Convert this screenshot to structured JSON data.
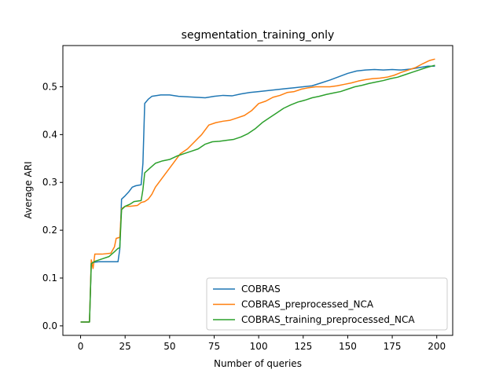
{
  "chart_data": {
    "type": "line",
    "title": "segmentation_training_only",
    "xlabel": "Number of queries",
    "ylabel": "Average ARI",
    "xlim": [
      -9.95,
      208.95
    ],
    "ylim": [
      -0.0199,
      0.5862
    ],
    "xticks": [
      0,
      25,
      50,
      75,
      100,
      125,
      150,
      175,
      200
    ],
    "yticks": [
      0.0,
      0.1,
      0.2,
      0.3,
      0.4,
      0.5
    ],
    "ytick_labels": [
      "0.0",
      "0.1",
      "0.2",
      "0.3",
      "0.4",
      "0.5"
    ],
    "grid": false,
    "legend_position": "lower-right",
    "series": [
      {
        "name": "COBRAS",
        "color": "#1f77b4",
        "points": [
          [
            0,
            0.008
          ],
          [
            5,
            0.008
          ],
          [
            6,
            0.132
          ],
          [
            8,
            0.133
          ],
          [
            10,
            0.134
          ],
          [
            21,
            0.134
          ],
          [
            22,
            0.16
          ],
          [
            23,
            0.265
          ],
          [
            25,
            0.272
          ],
          [
            27,
            0.28
          ],
          [
            29,
            0.29
          ],
          [
            31,
            0.293
          ],
          [
            34,
            0.295
          ],
          [
            35,
            0.34
          ],
          [
            36,
            0.465
          ],
          [
            38,
            0.474
          ],
          [
            40,
            0.48
          ],
          [
            45,
            0.483
          ],
          [
            50,
            0.483
          ],
          [
            55,
            0.48
          ],
          [
            60,
            0.479
          ],
          [
            65,
            0.478
          ],
          [
            70,
            0.477
          ],
          [
            75,
            0.48
          ],
          [
            80,
            0.482
          ],
          [
            85,
            0.481
          ],
          [
            90,
            0.485
          ],
          [
            95,
            0.488
          ],
          [
            100,
            0.49
          ],
          [
            105,
            0.492
          ],
          [
            110,
            0.494
          ],
          [
            115,
            0.496
          ],
          [
            120,
            0.498
          ],
          [
            125,
            0.5
          ],
          [
            130,
            0.502
          ],
          [
            135,
            0.508
          ],
          [
            140,
            0.514
          ],
          [
            145,
            0.521
          ],
          [
            150,
            0.528
          ],
          [
            155,
            0.533
          ],
          [
            160,
            0.535
          ],
          [
            165,
            0.536
          ],
          [
            170,
            0.535
          ],
          [
            175,
            0.536
          ],
          [
            180,
            0.535
          ],
          [
            185,
            0.537
          ],
          [
            190,
            0.54
          ],
          [
            195,
            0.543
          ],
          [
            199,
            0.543
          ]
        ]
      },
      {
        "name": "COBRAS_preprocessed_NCA",
        "color": "#ff7f0e",
        "points": [
          [
            0,
            0.008
          ],
          [
            5,
            0.008
          ],
          [
            6,
            0.138
          ],
          [
            7,
            0.12
          ],
          [
            8,
            0.15
          ],
          [
            12,
            0.15
          ],
          [
            17,
            0.152
          ],
          [
            19,
            0.165
          ],
          [
            20,
            0.183
          ],
          [
            22,
            0.185
          ],
          [
            23,
            0.245
          ],
          [
            25,
            0.25
          ],
          [
            28,
            0.25
          ],
          [
            32,
            0.252
          ],
          [
            34,
            0.258
          ],
          [
            36,
            0.26
          ],
          [
            38,
            0.265
          ],
          [
            40,
            0.275
          ],
          [
            42,
            0.29
          ],
          [
            45,
            0.305
          ],
          [
            48,
            0.32
          ],
          [
            52,
            0.34
          ],
          [
            56,
            0.36
          ],
          [
            60,
            0.37
          ],
          [
            64,
            0.385
          ],
          [
            68,
            0.4
          ],
          [
            72,
            0.42
          ],
          [
            76,
            0.425
          ],
          [
            80,
            0.428
          ],
          [
            84,
            0.43
          ],
          [
            88,
            0.435
          ],
          [
            92,
            0.44
          ],
          [
            96,
            0.45
          ],
          [
            100,
            0.465
          ],
          [
            104,
            0.47
          ],
          [
            108,
            0.478
          ],
          [
            112,
            0.482
          ],
          [
            116,
            0.488
          ],
          [
            120,
            0.49
          ],
          [
            124,
            0.495
          ],
          [
            128,
            0.498
          ],
          [
            132,
            0.5
          ],
          [
            136,
            0.5
          ],
          [
            140,
            0.5
          ],
          [
            144,
            0.502
          ],
          [
            148,
            0.505
          ],
          [
            152,
            0.508
          ],
          [
            156,
            0.512
          ],
          [
            160,
            0.515
          ],
          [
            164,
            0.517
          ],
          [
            168,
            0.518
          ],
          [
            172,
            0.52
          ],
          [
            176,
            0.524
          ],
          [
            180,
            0.53
          ],
          [
            184,
            0.535
          ],
          [
            188,
            0.54
          ],
          [
            192,
            0.548
          ],
          [
            196,
            0.555
          ],
          [
            199,
            0.558
          ]
        ]
      },
      {
        "name": "COBRAS_training_preprocessed_NCA",
        "color": "#2ca02c",
        "points": [
          [
            0,
            0.008
          ],
          [
            5,
            0.008
          ],
          [
            6,
            0.13
          ],
          [
            8,
            0.135
          ],
          [
            12,
            0.14
          ],
          [
            16,
            0.145
          ],
          [
            19,
            0.155
          ],
          [
            21,
            0.162
          ],
          [
            22,
            0.163
          ],
          [
            23,
            0.243
          ],
          [
            25,
            0.25
          ],
          [
            28,
            0.255
          ],
          [
            30,
            0.26
          ],
          [
            34,
            0.262
          ],
          [
            35,
            0.285
          ],
          [
            36,
            0.32
          ],
          [
            39,
            0.33
          ],
          [
            42,
            0.34
          ],
          [
            46,
            0.345
          ],
          [
            50,
            0.348
          ],
          [
            54,
            0.355
          ],
          [
            58,
            0.36
          ],
          [
            62,
            0.365
          ],
          [
            66,
            0.37
          ],
          [
            70,
            0.38
          ],
          [
            74,
            0.385
          ],
          [
            78,
            0.386
          ],
          [
            82,
            0.388
          ],
          [
            86,
            0.39
          ],
          [
            90,
            0.395
          ],
          [
            94,
            0.402
          ],
          [
            98,
            0.412
          ],
          [
            102,
            0.425
          ],
          [
            106,
            0.435
          ],
          [
            110,
            0.445
          ],
          [
            114,
            0.455
          ],
          [
            118,
            0.462
          ],
          [
            122,
            0.468
          ],
          [
            126,
            0.472
          ],
          [
            130,
            0.477
          ],
          [
            134,
            0.48
          ],
          [
            138,
            0.484
          ],
          [
            142,
            0.487
          ],
          [
            146,
            0.49
          ],
          [
            150,
            0.495
          ],
          [
            154,
            0.5
          ],
          [
            158,
            0.503
          ],
          [
            162,
            0.507
          ],
          [
            166,
            0.51
          ],
          [
            170,
            0.513
          ],
          [
            174,
            0.517
          ],
          [
            178,
            0.52
          ],
          [
            182,
            0.525
          ],
          [
            186,
            0.53
          ],
          [
            190,
            0.535
          ],
          [
            194,
            0.54
          ],
          [
            199,
            0.545
          ]
        ]
      }
    ]
  }
}
